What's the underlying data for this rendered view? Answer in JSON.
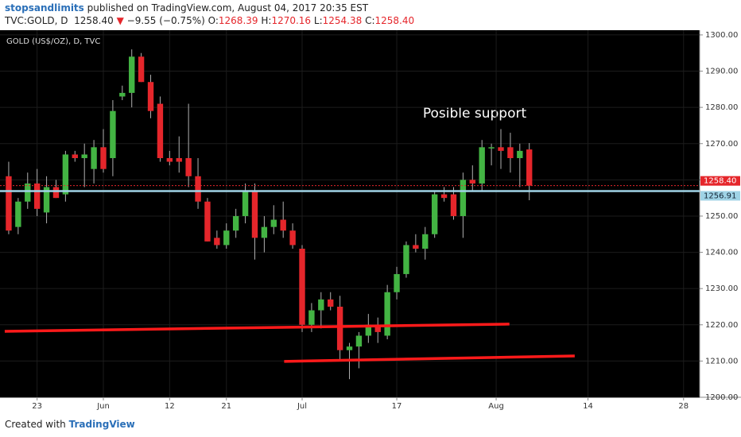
{
  "header": {
    "author": "stopsandlimits",
    "published": "published on TradingView.com, August 04, 2017 20:35 EST",
    "symbol": "TVC:GOLD, D",
    "last": "1258.40",
    "arrow": "▼",
    "change": "−9.55 (−0.75%)",
    "ohlc": [
      {
        "label": "O:",
        "value": "1268.39"
      },
      {
        "label": "H:",
        "value": "1270.16"
      },
      {
        "label": "L:",
        "value": "1254.38"
      },
      {
        "label": "C:",
        "value": "1258.40"
      }
    ]
  },
  "chart_data": {
    "type": "candlestick",
    "title": "GOLD (US$/OZ), D, TVC",
    "annotation": "Posible support",
    "up_color": "#43b443",
    "down_color": "#e5262b",
    "wick_color": "#b0b0b0",
    "x": [
      0,
      1,
      2,
      3,
      4,
      5,
      6,
      7,
      8,
      9,
      10,
      11,
      12,
      13,
      14,
      15,
      16,
      17,
      18,
      19,
      20,
      21,
      22,
      23,
      24,
      25,
      26,
      27,
      28,
      29,
      30,
      31,
      32,
      33,
      34,
      35,
      36,
      37,
      38,
      39,
      40,
      41,
      42,
      43,
      44,
      45,
      46,
      47,
      48,
      49,
      50,
      51,
      52,
      53,
      54,
      55
    ],
    "open": [
      1261,
      1247,
      1254,
      1259,
      1251,
      1258,
      1256,
      1267,
      1266,
      1263,
      1269,
      1266,
      1283,
      1284,
      1294,
      1287,
      1281,
      1266,
      1266,
      1266,
      1261,
      1254,
      1244,
      1242,
      1246,
      1250,
      1257,
      1244,
      1247,
      1249,
      1246,
      1241,
      1220,
      1224,
      1227,
      1225,
      1213,
      1214,
      1217,
      1220,
      1217,
      1229,
      1234,
      1242,
      1241,
      1245,
      1256,
      1256,
      1250,
      1260,
      1259,
      1269,
      1269,
      1269,
      1266,
      1268.39
    ],
    "high": [
      1265,
      1255,
      1262,
      1263,
      1261,
      1260,
      1268,
      1268,
      1270,
      1271,
      1274,
      1282,
      1286,
      1296,
      1295,
      1289,
      1283,
      1268,
      1272,
      1281,
      1266,
      1255,
      1246,
      1248,
      1252,
      1259,
      1259,
      1250,
      1253,
      1254,
      1248,
      1242,
      1226,
      1229,
      1229,
      1228,
      1215,
      1218,
      1223,
      1222,
      1231,
      1236,
      1243,
      1245,
      1247,
      1257,
      1258,
      1258,
      1262,
      1264,
      1271,
      1270,
      1274,
      1273,
      1270,
      1270.16
    ],
    "low": [
      1245,
      1245,
      1252,
      1250,
      1248,
      1255,
      1254,
      1265,
      1258,
      1259,
      1262,
      1261,
      1282,
      1280,
      1287,
      1277,
      1265,
      1264,
      1262,
      1258,
      1252,
      1243,
      1241,
      1241,
      1244,
      1248,
      1238,
      1240,
      1245,
      1244,
      1241,
      1218,
      1218,
      1219,
      1224,
      1210,
      1205,
      1208,
      1215,
      1215,
      1216,
      1227,
      1233,
      1240,
      1238,
      1244,
      1254,
      1249,
      1244,
      1257,
      1257,
      1264,
      1263,
      1262,
      1258,
      1254.38
    ],
    "close": [
      1246,
      1254,
      1259,
      1252,
      1258,
      1255,
      1267,
      1266,
      1267,
      1269,
      1263,
      1279,
      1284,
      1294,
      1287,
      1279,
      1266,
      1265,
      1265,
      1261,
      1254,
      1243,
      1242,
      1246,
      1250,
      1257,
      1244,
      1247,
      1249,
      1246,
      1242,
      1220,
      1224,
      1227,
      1225,
      1213,
      1214,
      1217,
      1220,
      1218,
      1229,
      1234,
      1242,
      1241,
      1245,
      1256,
      1255,
      1250,
      1260,
      1259,
      1269,
      1269,
      1268,
      1266,
      1268,
      1258.4
    ],
    "xlim": [
      -0.92,
      73.0
    ],
    "ylim": [
      1200,
      1301.3
    ],
    "xticks": [
      {
        "value": 3,
        "label": "23"
      },
      {
        "value": 10,
        "label": "Jun"
      },
      {
        "value": 17,
        "label": "12"
      },
      {
        "value": 23,
        "label": "21"
      },
      {
        "value": 31,
        "label": "Jul"
      },
      {
        "value": 41,
        "label": "17"
      },
      {
        "value": 51.5,
        "label": "Aug"
      },
      {
        "value": 61.2,
        "label": "14"
      },
      {
        "value": 71.3,
        "label": "28"
      }
    ],
    "yticks": [
      {
        "value": 1200,
        "label": "1200.00"
      },
      {
        "value": 1210,
        "label": "1210.00"
      },
      {
        "value": 1220,
        "label": "1220.00"
      },
      {
        "value": 1230,
        "label": "1230.00"
      },
      {
        "value": 1240,
        "label": "1240.00"
      },
      {
        "value": 1250,
        "label": "1250.00"
      },
      {
        "value": 1260,
        "label": "1260.00"
      },
      {
        "value": 1270,
        "label": "1270.00"
      },
      {
        "value": 1280,
        "label": "1280.00"
      },
      {
        "value": 1290,
        "label": "1290.00"
      },
      {
        "value": 1300,
        "label": "1300.00"
      }
    ],
    "grid": true,
    "levels": [
      {
        "value": 1258.4,
        "label": "1258.40",
        "color": "#e5262b",
        "style": "dotted"
      },
      {
        "value": 1256.91,
        "label": "1256.91",
        "color": "#9fd3e6",
        "style": "solid"
      }
    ],
    "trendlines": [
      {
        "x": [
          -0.42,
          52.9
        ],
        "y": [
          1218.2,
          1220.2
        ],
        "color": "#ff1a1a"
      },
      {
        "x": [
          29.1,
          59.8
        ],
        "y": [
          1209.9,
          1211.4
        ],
        "color": "#ff1a1a"
      }
    ]
  },
  "footer": {
    "created": "Created with",
    "brand": "TradingView"
  }
}
